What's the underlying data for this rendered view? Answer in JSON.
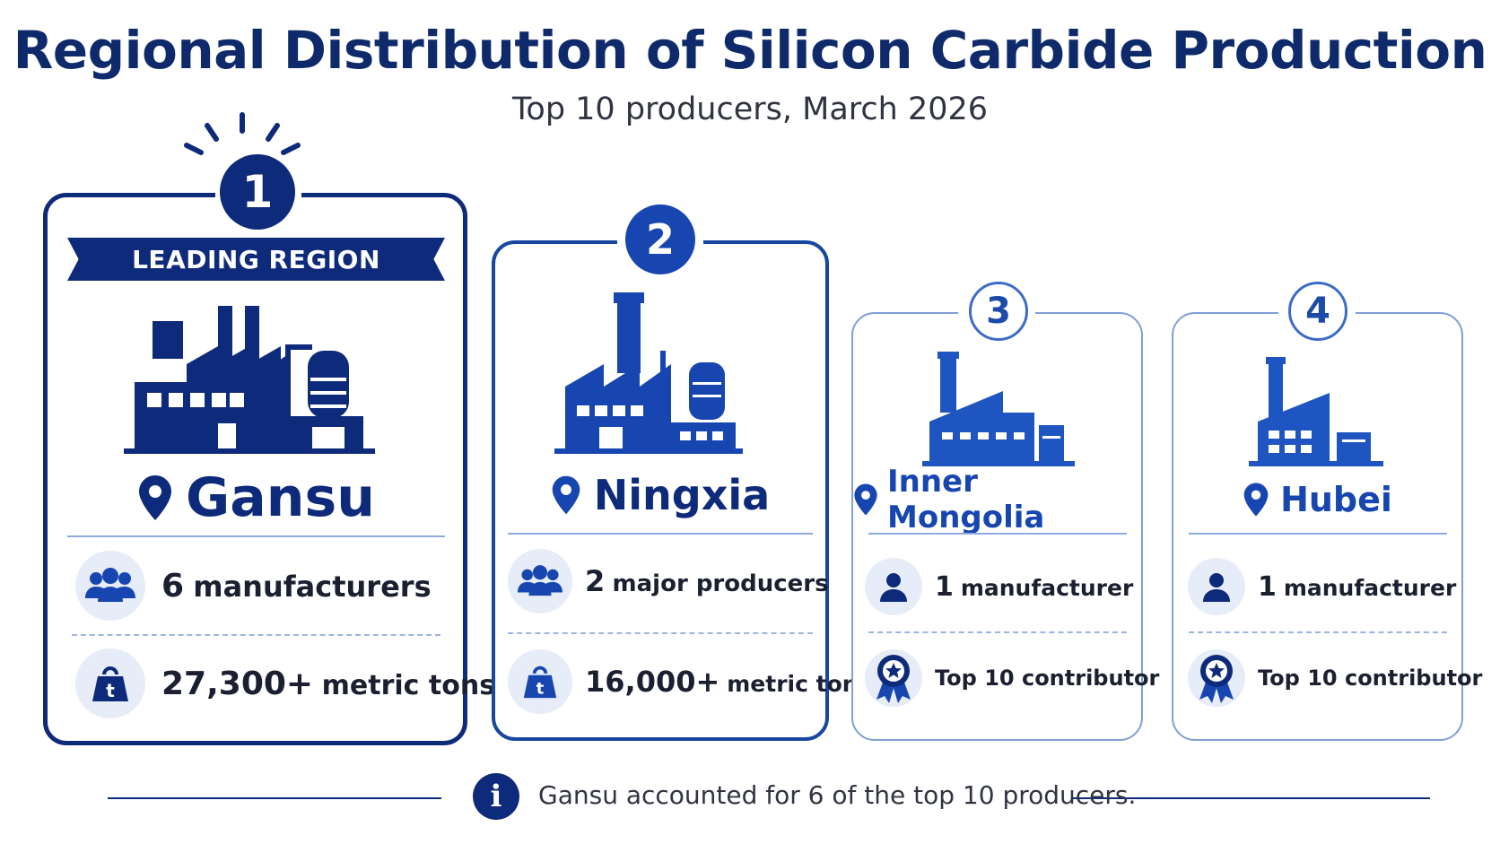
{
  "header": {
    "title": "Regional Distribution of Silicon Carbide Production",
    "subtitle": "Top 10 producers, March 2026"
  },
  "cards": [
    {
      "rank": "1",
      "banner": "LEADING REGION",
      "region": "Gansu",
      "stat1_value": "6",
      "stat1_label": "manufacturers",
      "stat2_value": "27,300+",
      "stat2_label": "metric tons",
      "stat2_icon_letter": "t"
    },
    {
      "rank": "2",
      "region": "Ningxia",
      "stat1_value": "2",
      "stat1_label": "major producers",
      "stat2_value": "16,000+",
      "stat2_label": "metric tons",
      "stat2_icon_letter": "t"
    },
    {
      "rank": "3",
      "region": "Inner Mongolia",
      "stat1_value": "1",
      "stat1_label": "manufacturer",
      "stat2_label": "Top 10 contributor"
    },
    {
      "rank": "4",
      "region": "Hubei",
      "stat1_value": "1",
      "stat1_label": "manufacturer",
      "stat2_label": "Top 10 contributor"
    }
  ],
  "footer": {
    "info_glyph": "i",
    "note": "Gansu accounted for 6 of the top 10 producers."
  },
  "colors": {
    "navy": "#0e2a7a",
    "blue": "#1746b0",
    "light_blue": "#7f9fd6",
    "icon_bg": "#e6ecf8"
  },
  "icons": [
    "sunburst-icon",
    "factory-icon",
    "map-pin-icon",
    "people-group-icon",
    "person-icon",
    "weight-icon",
    "award-ribbon-icon",
    "info-icon"
  ]
}
